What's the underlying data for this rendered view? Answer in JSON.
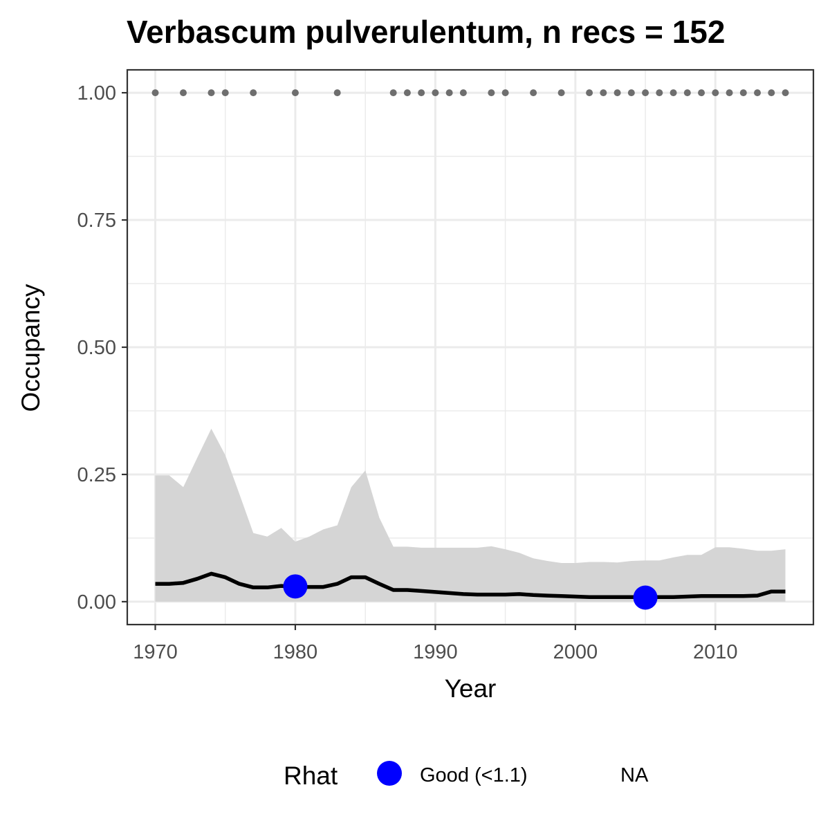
{
  "chart_data": {
    "type": "line",
    "title": "Verbascum pulverulentum, n recs = 152",
    "xlabel": "Year",
    "ylabel": "Occupancy",
    "xlim": [
      1968,
      2017
    ],
    "ylim": [
      -0.045,
      1.045
    ],
    "x_ticks": [
      1970,
      1980,
      1990,
      2000,
      2010
    ],
    "y_ticks": [
      0.0,
      0.25,
      0.5,
      0.75,
      1.0
    ],
    "y_tick_labels": [
      "0.00",
      "0.25",
      "0.50",
      "0.75",
      "1.00"
    ],
    "grid": true,
    "colors": {
      "line": "#000000",
      "ribbon": "#d5d5d5",
      "records": "#6e6e6e",
      "rhat_good": "#0000ff",
      "panel_border": "#333333",
      "grid": "#ebebeb"
    },
    "occupancy": {
      "x": [
        1970,
        1971,
        1972,
        1973,
        1974,
        1975,
        1976,
        1977,
        1978,
        1979,
        1980,
        1981,
        1982,
        1983,
        1984,
        1985,
        1986,
        1987,
        1988,
        1989,
        1990,
        1991,
        1992,
        1993,
        1994,
        1995,
        1996,
        1997,
        1998,
        1999,
        2000,
        2001,
        2002,
        2003,
        2004,
        2005,
        2006,
        2007,
        2008,
        2009,
        2010,
        2011,
        2012,
        2013,
        2014,
        2015
      ],
      "mean": [
        0.035,
        0.035,
        0.037,
        0.045,
        0.055,
        0.048,
        0.035,
        0.028,
        0.028,
        0.031,
        0.029,
        0.029,
        0.029,
        0.035,
        0.048,
        0.048,
        0.035,
        0.023,
        0.023,
        0.021,
        0.019,
        0.017,
        0.015,
        0.014,
        0.014,
        0.014,
        0.015,
        0.013,
        0.012,
        0.011,
        0.01,
        0.009,
        0.009,
        0.009,
        0.009,
        0.009,
        0.009,
        0.009,
        0.01,
        0.011,
        0.011,
        0.011,
        0.011,
        0.012,
        0.02,
        0.02
      ],
      "lower": [
        0,
        0,
        0,
        0,
        0,
        0,
        0,
        0,
        0,
        0,
        0,
        0,
        0,
        0,
        0,
        0,
        0,
        0,
        0,
        0,
        0,
        0,
        0,
        0,
        0,
        0,
        0,
        0,
        0,
        0,
        0,
        0,
        0,
        0,
        0,
        0,
        0,
        0,
        0,
        0,
        0,
        0,
        0,
        0,
        0,
        0
      ],
      "upper": [
        0.248,
        0.248,
        0.225,
        0.283,
        0.34,
        0.288,
        0.212,
        0.135,
        0.128,
        0.145,
        0.118,
        0.128,
        0.142,
        0.15,
        0.225,
        0.258,
        0.165,
        0.108,
        0.108,
        0.106,
        0.106,
        0.106,
        0.106,
        0.106,
        0.109,
        0.103,
        0.096,
        0.085,
        0.08,
        0.076,
        0.076,
        0.078,
        0.078,
        0.077,
        0.08,
        0.081,
        0.081,
        0.087,
        0.092,
        0.092,
        0.107,
        0.107,
        0.104,
        0.1,
        0.1,
        0.103
      ]
    },
    "records": {
      "x": [
        1970,
        1972,
        1974,
        1975,
        1977,
        1980,
        1983,
        1987,
        1988,
        1989,
        1990,
        1991,
        1992,
        1994,
        1995,
        1997,
        1999,
        2001,
        2002,
        2003,
        2004,
        2005,
        2006,
        2007,
        2008,
        2009,
        2010,
        2011,
        2012,
        2013,
        2014,
        2015
      ],
      "y": 1.0
    },
    "rhat_points": {
      "x": [
        1980,
        2005
      ],
      "y": [
        0.03,
        0.008
      ],
      "category": [
        "Good (<1.1)",
        "Good (<1.1)"
      ]
    },
    "legend": {
      "title": "Rhat",
      "position": "bottom",
      "items": [
        {
          "label": "Good (<1.1)",
          "color": "#0000ff"
        },
        {
          "label": "NA",
          "color": null
        }
      ]
    }
  }
}
